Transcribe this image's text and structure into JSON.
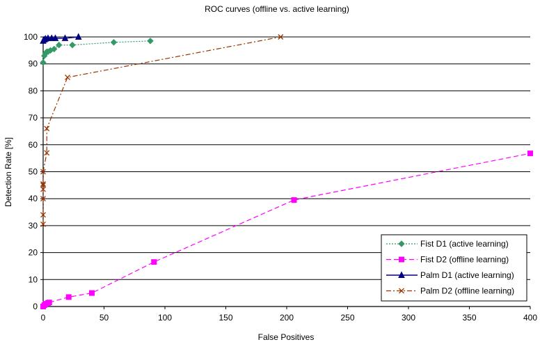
{
  "chart_data": {
    "type": "line",
    "title": "ROC curves (offline vs. active learning)",
    "xlabel": "False Positives",
    "ylabel": "Detection Rate [%]",
    "xlim": [
      0,
      400
    ],
    "ylim": [
      0,
      100
    ],
    "xticks": [
      0,
      50,
      100,
      150,
      200,
      250,
      300,
      350,
      400
    ],
    "yticks": [
      0,
      10,
      20,
      30,
      40,
      50,
      60,
      70,
      80,
      90,
      100
    ],
    "grid": "horizontal",
    "legend_position": "bottom-right",
    "series": [
      {
        "name": "Fist D1 (active learning)",
        "color": "#339966",
        "marker": "diamond",
        "line": "dotted",
        "x": [
          0,
          1,
          2,
          3,
          4,
          6,
          9,
          13,
          24,
          58,
          88
        ],
        "y": [
          90.5,
          93,
          94,
          94.5,
          94.5,
          95,
          95.5,
          97,
          97,
          98,
          98.5
        ]
      },
      {
        "name": "Fist D2 (offline learning)",
        "color": "#ff00ff",
        "marker": "square",
        "line": "dashed",
        "x": [
          0,
          1,
          2,
          4,
          5,
          21,
          40,
          91,
          206,
          400
        ],
        "y": [
          0,
          0.5,
          1,
          1.3,
          1.5,
          3.5,
          5,
          16.5,
          39.5,
          56.8
        ]
      },
      {
        "name": "Palm D1 (active learning)",
        "color": "#000080",
        "marker": "triangle",
        "line": "solid",
        "x": [
          0,
          1,
          2,
          4,
          7,
          10,
          18,
          29
        ],
        "y": [
          98.5,
          99,
          99.3,
          99.5,
          99.5,
          99.5,
          99.5,
          100
        ]
      },
      {
        "name": "Palm D2 (offline learning)",
        "color": "#993300",
        "marker": "x",
        "line": "dashdot",
        "x": [
          0,
          0,
          0,
          0,
          0,
          0,
          0,
          3,
          3,
          20,
          195
        ],
        "y": [
          30.5,
          34,
          40,
          43.5,
          45,
          45.5,
          50,
          57,
          66,
          85,
          100
        ]
      }
    ]
  }
}
